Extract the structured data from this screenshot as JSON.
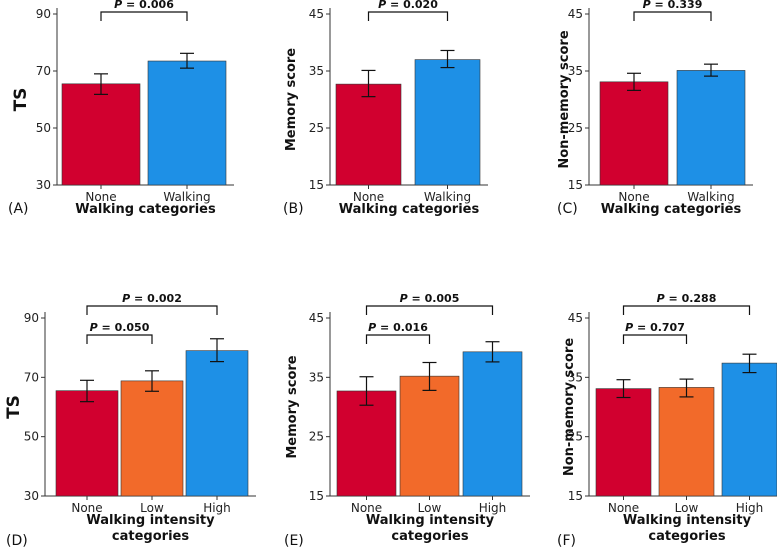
{
  "colors": {
    "none": "#d1002f",
    "walking": "#1e90e6",
    "low": "#f26a2a",
    "high": "#1e90e6"
  },
  "chart_data": [
    {
      "panel": "(A)",
      "type": "bar",
      "categories": [
        "None",
        "Walking"
      ],
      "values": [
        65.5,
        73.5
      ],
      "errors_low": [
        61.8,
        71.0
      ],
      "errors_high": [
        69.0,
        76.2
      ],
      "ylabel": "TS",
      "xlabel_lines": [
        "Walking categories"
      ],
      "ylim": [
        30,
        90
      ],
      "yticks": [
        30,
        50,
        70,
        90
      ],
      "pvalues": [
        {
          "text": "P = 0.006",
          "from": 0,
          "to": 1
        }
      ]
    },
    {
      "panel": "(B)",
      "type": "bar",
      "categories": [
        "None",
        "Walking"
      ],
      "values": [
        32.7,
        37.0
      ],
      "errors_low": [
        30.5,
        35.6
      ],
      "errors_high": [
        35.1,
        38.6
      ],
      "ylabel": "Memory score",
      "xlabel_lines": [
        "Walking categories"
      ],
      "ylim": [
        15,
        45
      ],
      "yticks": [
        15,
        25,
        35,
        45
      ],
      "pvalues": [
        {
          "text": "P = 0.020",
          "from": 0,
          "to": 1
        }
      ]
    },
    {
      "panel": "(C)",
      "type": "bar",
      "categories": [
        "None",
        "Walking"
      ],
      "values": [
        33.1,
        35.1
      ],
      "errors_low": [
        31.6,
        34.1
      ],
      "errors_high": [
        34.6,
        36.2
      ],
      "ylabel": "Non-memory score",
      "xlabel_lines": [
        "Walking categories"
      ],
      "ylim": [
        15,
        45
      ],
      "yticks": [
        15,
        25,
        35,
        45
      ],
      "pvalues": [
        {
          "text": "P = 0.339",
          "from": 0,
          "to": 1
        }
      ]
    },
    {
      "panel": "(D)",
      "type": "bar",
      "categories": [
        "None",
        "Low",
        "High"
      ],
      "values": [
        65.5,
        68.8,
        79.0
      ],
      "errors_low": [
        61.8,
        65.3,
        75.3
      ],
      "errors_high": [
        69.0,
        72.2,
        83.0
      ],
      "ylabel": "TS",
      "xlabel_lines": [
        "Walking intensity",
        "categories"
      ],
      "ylim": [
        30,
        90
      ],
      "yticks": [
        30,
        50,
        70,
        90
      ],
      "pvalues": [
        {
          "text": "P = 0.050",
          "from": 0,
          "to": 1
        },
        {
          "text": "P = 0.002",
          "from": 0,
          "to": 2
        }
      ]
    },
    {
      "panel": "(E)",
      "type": "bar",
      "categories": [
        "None",
        "Low",
        "High"
      ],
      "values": [
        32.7,
        35.2,
        39.3
      ],
      "errors_low": [
        30.3,
        32.8,
        37.6
      ],
      "errors_high": [
        35.1,
        37.5,
        41.0
      ],
      "ylabel": "Memory score",
      "xlabel_lines": [
        "Walking intensity",
        "categories"
      ],
      "ylim": [
        15,
        45
      ],
      "yticks": [
        15,
        25,
        35,
        45
      ],
      "pvalues": [
        {
          "text": "P = 0.016",
          "from": 0,
          "to": 1
        },
        {
          "text": "P = 0.005",
          "from": 0,
          "to": 2
        }
      ]
    },
    {
      "panel": "(F)",
      "type": "bar",
      "categories": [
        "None",
        "Low",
        "High"
      ],
      "values": [
        33.1,
        33.3,
        37.4
      ],
      "errors_low": [
        31.6,
        31.7,
        35.8
      ],
      "errors_high": [
        34.6,
        34.7,
        38.9
      ],
      "ylabel": "Non-memory score",
      "xlabel_lines": [
        "Walking intensity",
        "categories"
      ],
      "ylim": [
        15,
        45
      ],
      "yticks": [
        15,
        25,
        35,
        45
      ],
      "pvalues": [
        {
          "text": "P = 0.707",
          "from": 0,
          "to": 1
        },
        {
          "text": "P = 0.288",
          "from": 0,
          "to": 2
        }
      ]
    }
  ]
}
